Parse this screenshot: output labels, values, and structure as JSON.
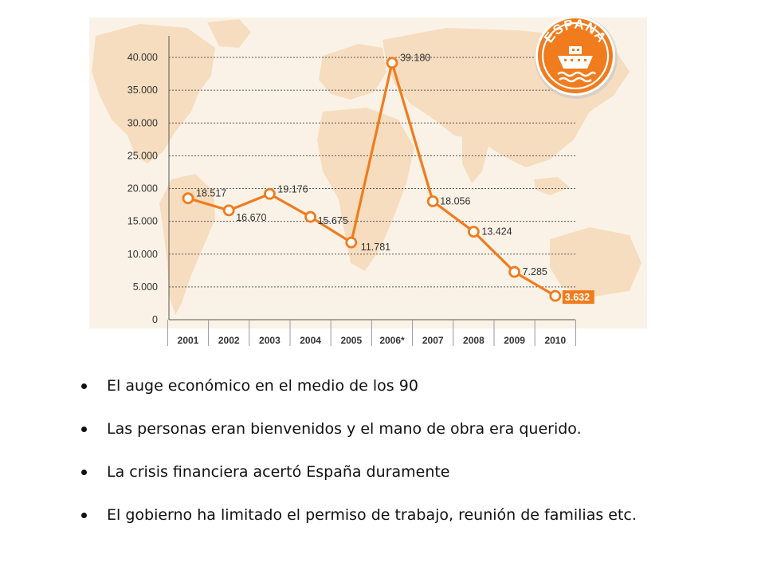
{
  "chart_data": {
    "type": "line",
    "categories": [
      "2001",
      "2002",
      "2003",
      "2004",
      "2005",
      "2006*",
      "2007",
      "2008",
      "2009",
      "2010"
    ],
    "series": [
      {
        "values": [
          18517,
          16670,
          19176,
          15675,
          11781,
          39180,
          18056,
          13424,
          7285,
          3632
        ],
        "labels": [
          "18.517",
          "16.670",
          "19.176",
          "15.675",
          "11.781",
          "39.180",
          "18.056",
          "13.424",
          "7.285",
          "3.632"
        ],
        "color": "#f07c1e"
      }
    ],
    "yticks": [
      "0",
      "5.000",
      "10.000",
      "15.000",
      "20.000",
      "25.000",
      "30.000",
      "35.000",
      "40.000"
    ],
    "ytick_values": [
      0,
      5000,
      10000,
      15000,
      20000,
      25000,
      30000,
      35000,
      40000
    ],
    "ylim": [
      0,
      40000
    ],
    "grid": true,
    "highlight_last": true,
    "highlight_color": "#f07c1e",
    "title": "",
    "xlabel": "",
    "ylabel": ""
  },
  "badge": {
    "text": "ESPAÑA",
    "icon": "ship-icon",
    "color": "#f07c1e"
  },
  "background_map_color": "#f6ddbf",
  "bullets": [
    "El auge económico en el medio de los 90",
    "Las personas eran bienvenidos y el mano de obra era querido.",
    "La crisis financiera acertó España duramente",
    "El gobierno ha limitado el permiso de trabajo, reunión de familias etc."
  ]
}
